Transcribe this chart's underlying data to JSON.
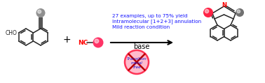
{
  "bg_color": "#ffffff",
  "text_blue": "#1515ff",
  "text_red": "#ff0000",
  "text_black": "#000000",
  "bond_color": "#222222",
  "bond_width": 1.1,
  "annotation_lines": [
    "Mild reaction condition",
    "Intramolecular [1+2+3] annulation",
    "27 examples, up to 75% yield"
  ],
  "annotation_fontsize": 5.2,
  "reaction_label": "base",
  "reaction_label_fontsize": 7,
  "figsize": [
    3.78,
    1.19
  ],
  "dpi": 100
}
